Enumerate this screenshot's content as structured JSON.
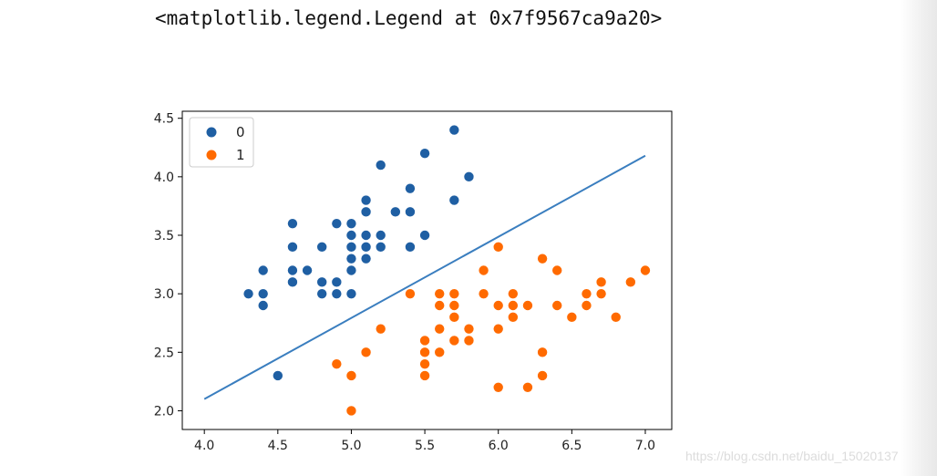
{
  "output": {
    "repr_text": "<matplotlib.legend.Legend at 0x7f9567ca9a20>"
  },
  "watermark": "https://blog.csdn.net/baidu_15020137",
  "colors": {
    "series_0": "#1f5fa3",
    "series_1": "#ff6a00",
    "line": "#3a7ebf"
  },
  "chart_data": {
    "type": "scatter",
    "title": "",
    "xlabel": "",
    "ylabel": "",
    "xlim": [
      3.85,
      7.18
    ],
    "ylim": [
      1.84,
      4.56
    ],
    "xticks": [
      4.0,
      4.5,
      5.0,
      5.5,
      6.0,
      6.5,
      7.0
    ],
    "xtick_labels": [
      "4.0",
      "4.5",
      "5.0",
      "5.5",
      "6.0",
      "6.5",
      "7.0"
    ],
    "yticks": [
      2.0,
      2.5,
      3.0,
      3.5,
      4.0,
      4.5
    ],
    "ytick_labels": [
      "2.0",
      "2.5",
      "3.0",
      "3.5",
      "4.0",
      "4.5"
    ],
    "grid": false,
    "legend": "upper-left",
    "series": [
      {
        "name": "0",
        "points": [
          [
            5.1,
            3.5
          ],
          [
            4.9,
            3.0
          ],
          [
            4.7,
            3.2
          ],
          [
            4.6,
            3.1
          ],
          [
            5.0,
            3.6
          ],
          [
            5.4,
            3.9
          ],
          [
            4.6,
            3.4
          ],
          [
            5.0,
            3.4
          ],
          [
            4.4,
            2.9
          ],
          [
            4.9,
            3.1
          ],
          [
            5.4,
            3.7
          ],
          [
            4.8,
            3.4
          ],
          [
            4.8,
            3.0
          ],
          [
            4.3,
            3.0
          ],
          [
            5.8,
            4.0
          ],
          [
            5.7,
            4.4
          ],
          [
            5.4,
            3.9
          ],
          [
            5.1,
            3.5
          ],
          [
            5.7,
            3.8
          ],
          [
            5.1,
            3.8
          ],
          [
            5.4,
            3.4
          ],
          [
            5.1,
            3.7
          ],
          [
            4.6,
            3.6
          ],
          [
            5.1,
            3.3
          ],
          [
            4.8,
            3.4
          ],
          [
            5.0,
            3.0
          ],
          [
            5.0,
            3.4
          ],
          [
            5.2,
            3.5
          ],
          [
            5.2,
            3.4
          ],
          [
            4.7,
            3.2
          ],
          [
            4.8,
            3.1
          ],
          [
            5.4,
            3.4
          ],
          [
            5.2,
            4.1
          ],
          [
            5.5,
            4.2
          ],
          [
            4.9,
            3.1
          ],
          [
            5.0,
            3.2
          ],
          [
            5.5,
            3.5
          ],
          [
            4.9,
            3.6
          ],
          [
            4.4,
            3.0
          ],
          [
            5.1,
            3.4
          ],
          [
            5.0,
            3.5
          ],
          [
            4.5,
            2.3
          ],
          [
            4.4,
            3.2
          ],
          [
            5.0,
            3.5
          ],
          [
            5.1,
            3.8
          ],
          [
            4.8,
            3.0
          ],
          [
            5.1,
            3.8
          ],
          [
            4.6,
            3.2
          ],
          [
            5.3,
            3.7
          ],
          [
            5.0,
            3.3
          ]
        ]
      },
      {
        "name": "1",
        "points": [
          [
            7.0,
            3.2
          ],
          [
            6.4,
            3.2
          ],
          [
            6.9,
            3.1
          ],
          [
            5.5,
            2.3
          ],
          [
            6.5,
            2.8
          ],
          [
            5.7,
            2.8
          ],
          [
            6.3,
            3.3
          ],
          [
            4.9,
            2.4
          ],
          [
            6.6,
            2.9
          ],
          [
            5.2,
            2.7
          ],
          [
            5.0,
            2.0
          ],
          [
            5.9,
            3.0
          ],
          [
            6.0,
            2.2
          ],
          [
            6.1,
            2.9
          ],
          [
            5.6,
            2.9
          ],
          [
            6.7,
            3.1
          ],
          [
            5.6,
            3.0
          ],
          [
            5.8,
            2.7
          ],
          [
            6.2,
            2.2
          ],
          [
            5.6,
            2.5
          ],
          [
            5.9,
            3.2
          ],
          [
            6.1,
            2.8
          ],
          [
            6.3,
            2.5
          ],
          [
            6.1,
            2.8
          ],
          [
            6.4,
            2.9
          ],
          [
            6.6,
            3.0
          ],
          [
            6.8,
            2.8
          ],
          [
            6.7,
            3.0
          ],
          [
            6.0,
            2.9
          ],
          [
            5.7,
            2.6
          ],
          [
            5.5,
            2.4
          ],
          [
            5.5,
            2.4
          ],
          [
            5.8,
            2.7
          ],
          [
            6.0,
            2.7
          ],
          [
            5.4,
            3.0
          ],
          [
            6.0,
            3.4
          ],
          [
            6.7,
            3.1
          ],
          [
            6.3,
            2.3
          ],
          [
            5.6,
            3.0
          ],
          [
            5.5,
            2.5
          ],
          [
            5.5,
            2.6
          ],
          [
            6.1,
            3.0
          ],
          [
            5.8,
            2.6
          ],
          [
            5.0,
            2.3
          ],
          [
            5.6,
            2.7
          ],
          [
            5.7,
            3.0
          ],
          [
            5.7,
            2.9
          ],
          [
            6.2,
            2.9
          ],
          [
            5.1,
            2.5
          ],
          [
            5.7,
            2.8
          ]
        ]
      }
    ],
    "line": {
      "x": [
        4.0,
        7.0
      ],
      "y": [
        2.1,
        4.18
      ]
    }
  }
}
